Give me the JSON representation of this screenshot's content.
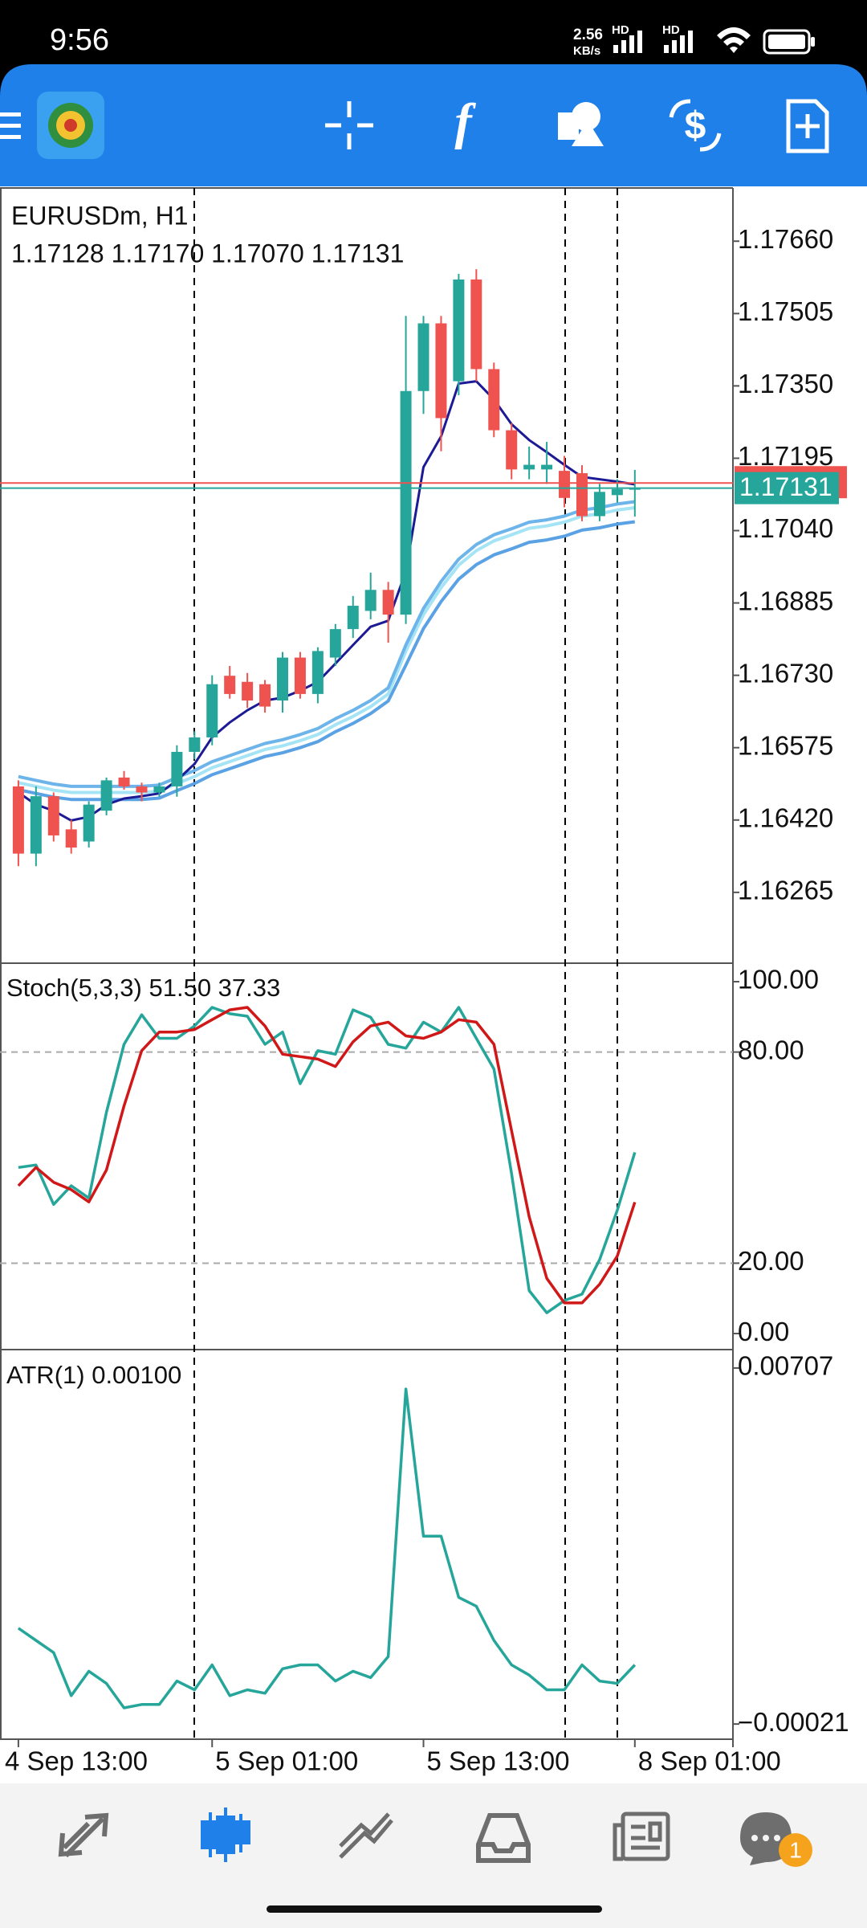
{
  "status_bar": {
    "time": "9:56",
    "speed": "2.56",
    "speed_unit": "KB/s",
    "network_1": "HD",
    "network_2": "HD"
  },
  "toolbar": {
    "indicators_icon": "f",
    "trade_icon_symbol": "$"
  },
  "bottom_nav": {
    "chat_badge": "1"
  },
  "chart_data": [
    {
      "type": "candlestick",
      "title": "EURUSDm, H1",
      "subtitle": "1.17128 1.17170 1.17070 1.17131",
      "categories": [
        "4 Sep 13:00",
        null,
        null,
        null,
        null,
        null,
        null,
        null,
        null,
        null,
        null,
        "5 Sep 01:00",
        null,
        null,
        null,
        null,
        null,
        null,
        null,
        null,
        null,
        null,
        null,
        "5 Sep 13:00",
        null,
        null,
        null,
        null,
        null,
        null,
        null,
        null,
        null,
        null,
        null,
        "8 Sep 01:00"
      ],
      "open": [
        1.16492,
        1.16348,
        1.16471,
        1.164,
        1.16374,
        1.1644,
        1.16511,
        1.16492,
        1.16479,
        1.16492,
        1.16566,
        1.16597,
        1.16729,
        1.16716,
        1.16711,
        1.16676,
        1.16768,
        1.1669,
        1.16768,
        1.16829,
        1.16868,
        1.16913,
        1.1686,
        1.17339,
        1.17484,
        1.1736,
        1.17578,
        1.17386,
        1.17255,
        1.17171,
        1.17171,
        1.17168,
        1.17163,
        1.17071,
        1.17116,
        1.17128
      ],
      "high": [
        1.16505,
        1.16492,
        1.16479,
        1.1642,
        1.1646,
        1.16511,
        1.16525,
        1.165,
        1.165,
        1.1658,
        1.1661,
        1.1673,
        1.1675,
        1.16735,
        1.1672,
        1.1678,
        1.1678,
        1.1679,
        1.1684,
        1.169,
        1.1695,
        1.1693,
        1.175,
        1.175,
        1.175,
        1.1759,
        1.176,
        1.174,
        1.1727,
        1.1722,
        1.1723,
        1.172,
        1.1718,
        1.1714,
        1.1715,
        1.1717
      ],
      "low": [
        1.16321,
        1.16321,
        1.16374,
        1.16348,
        1.16361,
        1.1643,
        1.16485,
        1.1646,
        1.1647,
        1.1647,
        1.1655,
        1.1658,
        1.1668,
        1.1666,
        1.1665,
        1.1665,
        1.1668,
        1.1667,
        1.1675,
        1.1681,
        1.1685,
        1.168,
        1.1684,
        1.1729,
        1.1721,
        1.1733,
        1.1736,
        1.1724,
        1.1715,
        1.1715,
        1.1714,
        1.1709,
        1.1706,
        1.1706,
        1.171,
        1.1707
      ],
      "close": [
        1.16348,
        1.16471,
        1.16387,
        1.16361,
        1.16453,
        1.16505,
        1.16492,
        1.16479,
        1.16492,
        1.16566,
        1.16597,
        1.16711,
        1.1669,
        1.16676,
        1.16663,
        1.16768,
        1.1669,
        1.16782,
        1.16829,
        1.16879,
        1.16913,
        1.1686,
        1.17339,
        1.17484,
        1.17281,
        1.17578,
        1.17386,
        1.17255,
        1.17171,
        1.17181,
        1.17181,
        1.1711,
        1.17071,
        1.17123,
        1.17129,
        1.17131
      ],
      "up_color": "#26a69a",
      "down_color": "#ef5350",
      "overlays": [
        {
          "color": "#5aa2e4",
          "values": [
            1.16485,
            1.16477,
            1.16469,
            1.16464,
            1.16464,
            1.16464,
            1.16464,
            1.16464,
            1.16467,
            1.16483,
            1.16498,
            1.16517,
            1.1653,
            1.16543,
            1.16556,
            1.16564,
            1.16575,
            1.16588,
            1.16609,
            1.16627,
            1.16648,
            1.16675,
            1.16752,
            1.1683,
            1.16888,
            1.16936,
            1.16967,
            1.16988,
            1.17001,
            1.17015,
            1.1702,
            1.17028,
            1.17041,
            1.17046,
            1.17054,
            1.17059
          ]
        },
        {
          "color": "#a4e4f4",
          "values": [
            1.165,
            1.16492,
            1.16484,
            1.16479,
            1.16479,
            1.16479,
            1.16479,
            1.16479,
            1.16482,
            1.16498,
            1.16513,
            1.16532,
            1.16545,
            1.16558,
            1.16571,
            1.16579,
            1.1659,
            1.16603,
            1.16624,
            1.16642,
            1.16663,
            1.1669,
            1.16782,
            1.1686,
            1.16918,
            1.16966,
            1.16997,
            1.17018,
            1.17031,
            1.17045,
            1.1705,
            1.17058,
            1.17071,
            1.17076,
            1.17084,
            1.17089
          ]
        },
        {
          "color": "#6cb4ea",
          "values": [
            1.16513,
            1.16505,
            1.16497,
            1.16492,
            1.16492,
            1.16492,
            1.16492,
            1.16492,
            1.16495,
            1.16511,
            1.16526,
            1.16545,
            1.16558,
            1.16571,
            1.16584,
            1.16592,
            1.16603,
            1.16616,
            1.16637,
            1.16655,
            1.16676,
            1.16703,
            1.16795,
            1.16873,
            1.16931,
            1.16979,
            1.1701,
            1.17031,
            1.17044,
            1.17058,
            1.17063,
            1.17071,
            1.17084,
            1.17089,
            1.17097,
            1.17102
          ]
        },
        {
          "color": "#1c1a94",
          "values": [
            1.16479,
            1.16453,
            1.1644,
            1.16419,
            1.16427,
            1.16453,
            1.16466,
            1.16471,
            1.16477,
            1.16505,
            1.1654,
            1.16597,
            1.16629,
            1.16655,
            1.16676,
            1.16682,
            1.16697,
            1.16716,
            1.16755,
            1.16795,
            1.16834,
            1.16847,
            1.16953,
            1.17176,
            1.17242,
            1.17355,
            1.1736,
            1.17321,
            1.17268,
            1.17234,
            1.17208,
            1.17181,
            1.17155,
            1.1715,
            1.17145,
            1.17139
          ]
        }
      ],
      "bid": 1.17131,
      "bid_color": "#26a69a",
      "ask": 1.17142,
      "ask_color": "#ef5350",
      "ylim": [
        1.16115,
        1.17774
      ],
      "yticks": [
        {
          "value": 1.1766,
          "label": "1.17660"
        },
        1.17505,
        {
          "value": 1.1735,
          "label": "1.17350"
        },
        1.17195,
        {
          "value": 1.1704,
          "label": "1.17040"
        },
        1.16885,
        {
          "value": 1.1673,
          "label": "1.16730"
        },
        1.16575,
        {
          "value": 1.1642,
          "label": "1.16420"
        },
        1.16265
      ]
    },
    {
      "type": "line",
      "title": "Stoch(5,3,3) 51.50 37.33",
      "series": [
        {
          "color": "#26a69a",
          "values": [
            47.2,
            47.9,
            36.7,
            42.0,
            38.5,
            62.9,
            82.2,
            90.6,
            83.9,
            83.9,
            87.4,
            92.7,
            90.9,
            90.2,
            82.2,
            85.7,
            71.0,
            80.4,
            79.4,
            92.0,
            89.9,
            82.2,
            81.1,
            88.5,
            85.7,
            92.7,
            83.9,
            75.2,
            45.5,
            12.2,
            5.9,
            9.4,
            11.2,
            21.0,
            35.0,
            51.5
          ]
        },
        {
          "color": "#d01818",
          "values": [
            42.0,
            47.2,
            43.0,
            40.9,
            37.4,
            46.5,
            64.7,
            80.4,
            85.7,
            85.7,
            86.4,
            89.2,
            92.0,
            92.7,
            87.4,
            79.4,
            78.7,
            78.0,
            75.9,
            82.9,
            87.4,
            88.5,
            84.6,
            83.9,
            85.7,
            89.2,
            88.5,
            82.2,
            57.7,
            33.2,
            15.7,
            8.7,
            8.7,
            14.0,
            22.0,
            37.33
          ]
        }
      ],
      "levels": [
        80,
        20
      ],
      "ylim": [
        -4.1,
        104.8
      ],
      "yticks": [
        {
          "value": 100,
          "label": "100.00"
        },
        {
          "value": 80,
          "label": "80.00"
        },
        {
          "value": 20,
          "label": "20.00"
        },
        {
          "value": 0,
          "label": "0.00"
        }
      ]
    },
    {
      "type": "line",
      "title": "ATR(1) 0.00100",
      "series": [
        {
          "color": "#26a69a",
          "values": [
            0.00175,
            0.0015,
            0.00125,
            0.00037,
            0.00087,
            0.00062,
            0.00012,
            0.00019,
            0.00019,
            0.00067,
            0.00049,
            0.001,
            0.00037,
            0.00049,
            0.00042,
            0.00092,
            0.001,
            0.001,
            0.00067,
            0.00087,
            0.00074,
            0.00117,
            0.00664,
            0.00363,
            0.00363,
            0.00238,
            0.0022,
            0.0015,
            0.001,
            0.00079,
            0.00049,
            0.00049,
            0.001,
            0.00067,
            0.00062,
            0.001
          ]
        }
      ],
      "ylim": [
        -0.00052,
        0.00743
      ],
      "yticks": [
        0.00707,
        {
          "value": -0.00021,
          "label": "−0.00021"
        }
      ]
    }
  ]
}
